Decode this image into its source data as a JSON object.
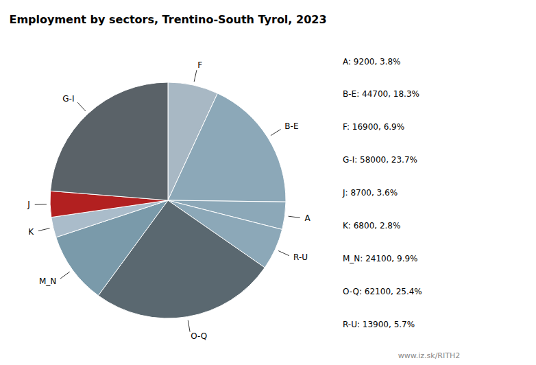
{
  "chart_data": {
    "type": "pie",
    "title": "Employment by sectors, Trentino-South Tyrol, 2023",
    "categories": [
      "F",
      "B-E",
      "A",
      "R-U",
      "O-Q",
      "M_N",
      "K",
      "J",
      "G-I"
    ],
    "values": [
      16900,
      44700,
      9200,
      13900,
      62100,
      24100,
      6800,
      8700,
      58000
    ],
    "colors": [
      "#a8b8c4",
      "#8ca8b8",
      "#8ca8b8",
      "#8ca8b8",
      "#5a6870",
      "#7a9aaa",
      "#aabcca",
      "#b22020",
      "#5a6268"
    ],
    "annotations": [
      "A: 9200, 3.8%",
      "B-E: 44700, 18.3%",
      "F: 16900, 6.9%",
      "G-I: 58000, 23.7%",
      "J: 8700, 3.6%",
      "K: 6800, 2.8%",
      "M_N: 24100, 9.9%",
      "O-Q: 62100, 25.4%",
      "R-U: 13900, 5.7%",
      "www.iz.sk/RITH2"
    ]
  }
}
